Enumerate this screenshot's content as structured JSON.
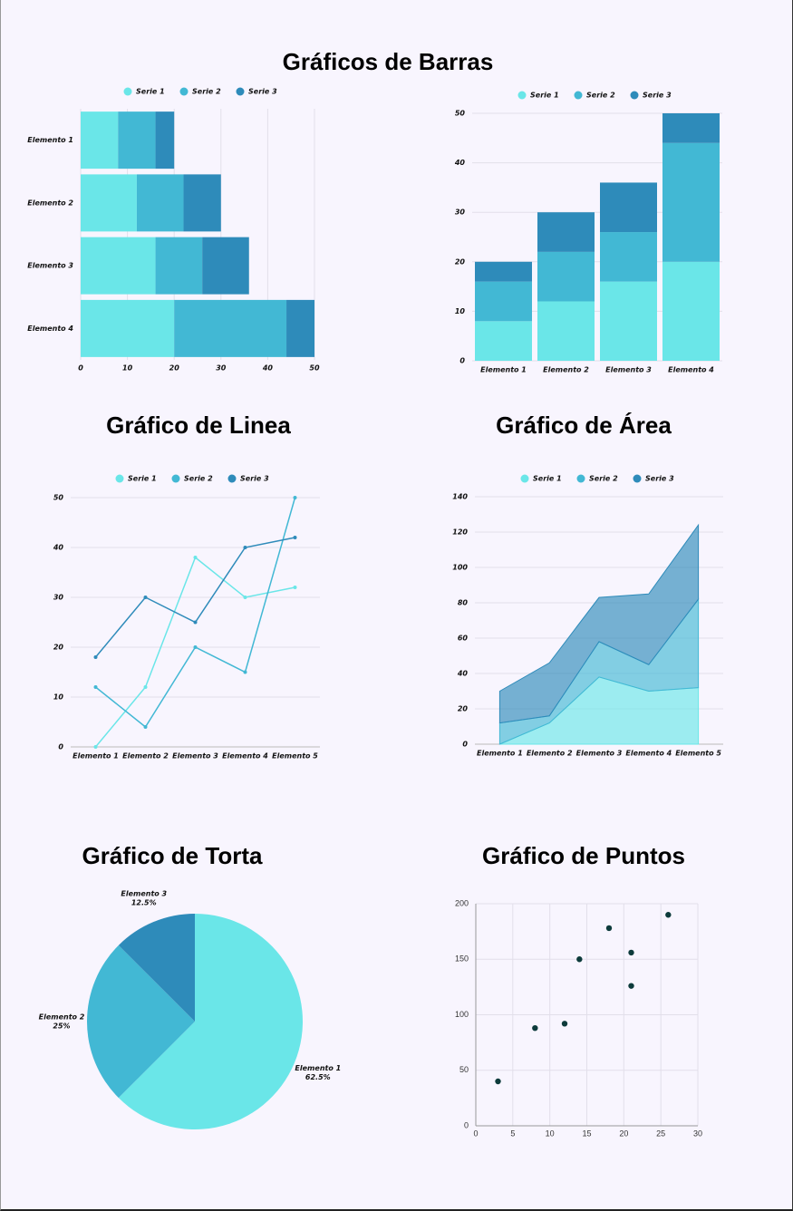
{
  "header": {
    "title": "Gráficos de Barras"
  },
  "chart_data": [
    {
      "type": "hbar",
      "stacked": true,
      "categories": [
        "Elemento 1",
        "Elemento 2",
        "Elemento 3",
        "Elemento 4"
      ],
      "series": [
        {
          "name": "Serie 1",
          "color": "#6ae6e8",
          "values": [
            8,
            12,
            16,
            20
          ]
        },
        {
          "name": "Serie 2",
          "color": "#42b8d4",
          "values": [
            8,
            10,
            10,
            24
          ]
        },
        {
          "name": "Serie 3",
          "color": "#2e8bba",
          "values": [
            4,
            8,
            10,
            6
          ]
        }
      ],
      "xlim": [
        0,
        50
      ],
      "xticks": [
        0,
        10,
        20,
        30,
        40,
        50
      ],
      "grid": true
    },
    {
      "type": "bar",
      "stacked": true,
      "categories": [
        "Elemento 1",
        "Elemento 2",
        "Elemento 3",
        "Elemento 4"
      ],
      "series": [
        {
          "name": "Serie 1",
          "color": "#6ae6e8",
          "values": [
            8,
            12,
            16,
            20
          ]
        },
        {
          "name": "Serie 2",
          "color": "#42b8d4",
          "values": [
            8,
            10,
            10,
            24
          ]
        },
        {
          "name": "Serie 3",
          "color": "#2e8bba",
          "values": [
            4,
            8,
            10,
            6
          ]
        }
      ],
      "ylim": [
        0,
        50
      ],
      "yticks": [
        0,
        10,
        20,
        30,
        40,
        50
      ],
      "grid": true
    },
    {
      "type": "line",
      "title": "Gráfico de Linea",
      "categories": [
        "Elemento 1",
        "Elemento 2",
        "Elemento 3",
        "Elemento 4",
        "Elemento 5"
      ],
      "series": [
        {
          "name": "Serie 1",
          "color": "#6ae6e8",
          "values": [
            0,
            12,
            38,
            30,
            32
          ]
        },
        {
          "name": "Serie 2",
          "color": "#42b8d4",
          "values": [
            12,
            4,
            20,
            15,
            50
          ]
        },
        {
          "name": "Serie 3",
          "color": "#2e8bba",
          "values": [
            18,
            30,
            25,
            40,
            42
          ]
        }
      ],
      "ylim": [
        0,
        50
      ],
      "yticks": [
        0,
        10,
        20,
        30,
        40,
        50
      ],
      "grid": true
    },
    {
      "type": "area",
      "stacked": true,
      "title": "Gráfico de Área",
      "categories": [
        "Elemento 1",
        "Elemento 2",
        "Elemento 3",
        "Elemento 4",
        "Elemento 5"
      ],
      "series": [
        {
          "name": "Serie 1",
          "color": "#6ae6e8",
          "values": [
            0,
            12,
            38,
            30,
            32
          ]
        },
        {
          "name": "Serie 2",
          "color": "#42b8d4",
          "values": [
            12,
            4,
            20,
            15,
            50
          ]
        },
        {
          "name": "Serie 3",
          "color": "#2e8bba",
          "values": [
            18,
            30,
            25,
            40,
            42
          ]
        }
      ],
      "ylim": [
        0,
        140
      ],
      "yticks": [
        0,
        20,
        40,
        60,
        80,
        100,
        120,
        140
      ],
      "grid": true
    },
    {
      "type": "pie",
      "title": "Gráfico de Torta",
      "categories": [
        "Elemento 1",
        "Elemento 2",
        "Elemento 3"
      ],
      "values": [
        62.5,
        25,
        12.5
      ],
      "value_labels": [
        "62.5%",
        "25%",
        "12.5%"
      ],
      "colors": [
        "#6ae6e8",
        "#42b8d4",
        "#2e8bba"
      ]
    },
    {
      "type": "scatter",
      "title": "Gráfico de Puntos",
      "color": "#0d3b3b",
      "x": [
        3,
        8,
        12,
        14,
        18,
        21,
        21,
        26
      ],
      "values": [
        40,
        88,
        92,
        150,
        178,
        156,
        126,
        190
      ],
      "xlim": [
        0,
        30
      ],
      "xticks": [
        0,
        5,
        10,
        15,
        20,
        25,
        30
      ],
      "ylim": [
        0,
        200
      ],
      "yticks": [
        0,
        50,
        100,
        150,
        200
      ],
      "grid": true
    }
  ]
}
